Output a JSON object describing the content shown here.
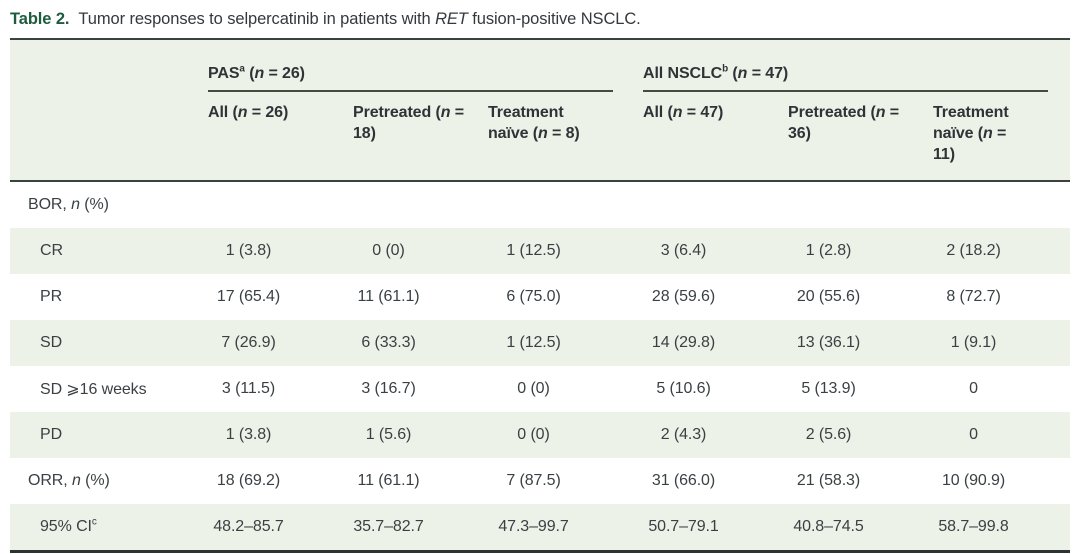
{
  "caption": {
    "label": "Table 2.",
    "pre": "Tumor responses to selpercatinib in patients with ",
    "italic": "RET",
    "post": " fusion-positive NSCLC."
  },
  "colors": {
    "accent_green": "#1d5c3e",
    "row_shade": "#ecf2e7",
    "border_dark": "#3a423e",
    "text": "#3a4144"
  },
  "table": {
    "col_groups": [
      {
        "name": "PAS",
        "sup": "a",
        "n_open": "(",
        "n_var": "n",
        "n_rest": " = 26)"
      },
      {
        "name": "All NSCLC",
        "sup": "b",
        "n_open": "(",
        "n_var": "n",
        "n_rest": " = 47)"
      }
    ],
    "sub_headers": [
      {
        "label": "All ",
        "n_open": "(",
        "n_var": "n",
        "n_rest": " = 26)"
      },
      {
        "label": "Pretreated ",
        "n_open": "(",
        "n_var": "n",
        "n_rest": " = 18)"
      },
      {
        "label": "Treatment naïve ",
        "n_open": "(",
        "n_var": "n",
        "n_rest": " = 8)"
      },
      {
        "label": "All ",
        "n_open": "(",
        "n_var": "n",
        "n_rest": " = 47)"
      },
      {
        "label": "Pretreated ",
        "n_open": "(",
        "n_var": "n",
        "n_rest": " = 36)"
      },
      {
        "label": "Treatment naïve ",
        "n_open": "(",
        "n_var": "n",
        "n_rest": " = 11)"
      }
    ],
    "rows": [
      {
        "label_pre": "BOR, ",
        "label_var": "n",
        "label_post": " (%)",
        "sup": "",
        "indent": false,
        "shaded": false,
        "values": [
          "",
          "",
          "",
          "",
          "",
          ""
        ]
      },
      {
        "label_pre": "CR",
        "label_var": "",
        "label_post": "",
        "sup": "",
        "indent": true,
        "shaded": true,
        "values": [
          "1 (3.8)",
          "0 (0)",
          "1 (12.5)",
          "3 (6.4)",
          "1 (2.8)",
          "2 (18.2)"
        ]
      },
      {
        "label_pre": "PR",
        "label_var": "",
        "label_post": "",
        "sup": "",
        "indent": true,
        "shaded": false,
        "values": [
          "17 (65.4)",
          "11 (61.1)",
          "6 (75.0)",
          "28 (59.6)",
          "20 (55.6)",
          "8 (72.7)"
        ]
      },
      {
        "label_pre": "SD",
        "label_var": "",
        "label_post": "",
        "sup": "",
        "indent": true,
        "shaded": true,
        "values": [
          "7 (26.9)",
          "6 (33.3)",
          "1 (12.5)",
          "14 (29.8)",
          "13 (36.1)",
          "1 (9.1)"
        ]
      },
      {
        "label_pre": "SD ⩾16 weeks",
        "label_var": "",
        "label_post": "",
        "sup": "",
        "indent": true,
        "shaded": false,
        "values": [
          "3 (11.5)",
          "3 (16.7)",
          "0 (0)",
          "5 (10.6)",
          "5 (13.9)",
          "0"
        ]
      },
      {
        "label_pre": "PD",
        "label_var": "",
        "label_post": "",
        "sup": "",
        "indent": true,
        "shaded": true,
        "values": [
          "1 (3.8)",
          "1 (5.6)",
          "0 (0)",
          "2 (4.3)",
          "2 (5.6)",
          "0"
        ]
      },
      {
        "label_pre": "ORR, ",
        "label_var": "n",
        "label_post": " (%)",
        "sup": "",
        "indent": false,
        "shaded": false,
        "values": [
          "18 (69.2)",
          "11 (61.1)",
          "7 (87.5)",
          "31 (66.0)",
          "21 (58.3)",
          "10 (90.9)"
        ]
      },
      {
        "label_pre": "95% CI",
        "label_var": "",
        "label_post": "",
        "sup": "c",
        "indent": true,
        "shaded": true,
        "values": [
          "48.2–85.7",
          "35.7–82.7",
          "47.3–99.7",
          "50.7–79.1",
          "40.8–74.5",
          "58.7–99.8"
        ]
      }
    ]
  }
}
